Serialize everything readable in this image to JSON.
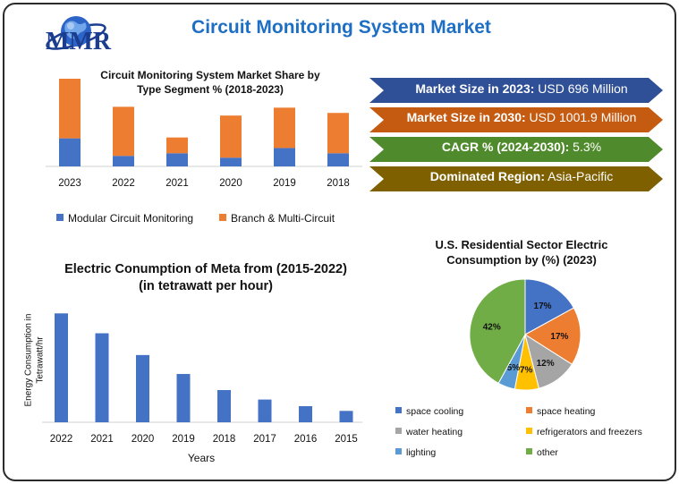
{
  "header": {
    "title": "Circuit Monitoring System Market",
    "logo_text": "MMR"
  },
  "stats": [
    {
      "label": "Market Size in 2023:",
      "value": "USD 696 Million",
      "color": "#2f4f96"
    },
    {
      "label": "Market Size in 2030:",
      "value": "USD 1001.9 Million",
      "color": "#c55a11"
    },
    {
      "label": "CAGR % (2024-2030):",
      "value": "5.3%",
      "color": "#4f8a2c"
    },
    {
      "label": "Dominated Region:",
      "value": "Asia-Pacific",
      "color": "#7f6000"
    }
  ],
  "chart_data": [
    {
      "type": "bar",
      "stacked": true,
      "title": "Circuit Monitoring System Market Share by Type Segment % (2018-2023)",
      "categories": [
        "2023",
        "2022",
        "2021",
        "2020",
        "2019",
        "2018"
      ],
      "series": [
        {
          "name": "Modular Circuit Monitoring",
          "color": "#4472c4",
          "values": [
            32,
            12,
            15,
            10,
            21,
            15
          ]
        },
        {
          "name": "Branch & Multi-Circuit",
          "color": "#ed7d31",
          "values": [
            68,
            56,
            18,
            48,
            46,
            46
          ]
        }
      ],
      "ylim": [
        0,
        100
      ],
      "legend": "bottom"
    },
    {
      "type": "bar",
      "title": "Electric Conumption of Meta from (2015-2022) (in tetrawatt per hour)",
      "title_lines": [
        "Electric Conumption of Meta from (2015-2022)",
        "(in tetrawatt per hour)"
      ],
      "xlabel": "Years",
      "ylabel": "Energy Consumption in Tetrawatt/hr",
      "ylabel_lines": [
        "Energy Consumption in",
        "Tetrawatt/hr"
      ],
      "categories": [
        "2022",
        "2021",
        "2020",
        "2019",
        "2018",
        "2017",
        "2016",
        "2015"
      ],
      "values": [
        11.5,
        9.4,
        7.1,
        5.1,
        3.4,
        2.4,
        1.7,
        1.2
      ],
      "ylim": [
        0,
        12
      ],
      "color": "#4472c4"
    },
    {
      "type": "pie",
      "title": "U.S. Residential Sector Electric Consumption by (%) (2023)",
      "title_lines": [
        "U.S. Residential Sector Electric",
        "Consumption by (%) (2023)"
      ],
      "slices": [
        {
          "name": "space cooling",
          "value": 17,
          "label": "17%",
          "color": "#4472c4"
        },
        {
          "name": "space heating",
          "value": 17,
          "label": "17%",
          "color": "#ed7d31"
        },
        {
          "name": "water heating",
          "value": 12,
          "label": "12%",
          "color": "#a5a5a5"
        },
        {
          "name": "refrigerators and freezers",
          "value": 7,
          "label": "7%",
          "color": "#ffc000"
        },
        {
          "name": "lighting",
          "value": 5,
          "label": "5%",
          "color": "#5b9bd5"
        },
        {
          "name": "other",
          "value": 42,
          "label": "42%",
          "color": "#70ad47"
        }
      ],
      "legend": "bottom"
    }
  ]
}
